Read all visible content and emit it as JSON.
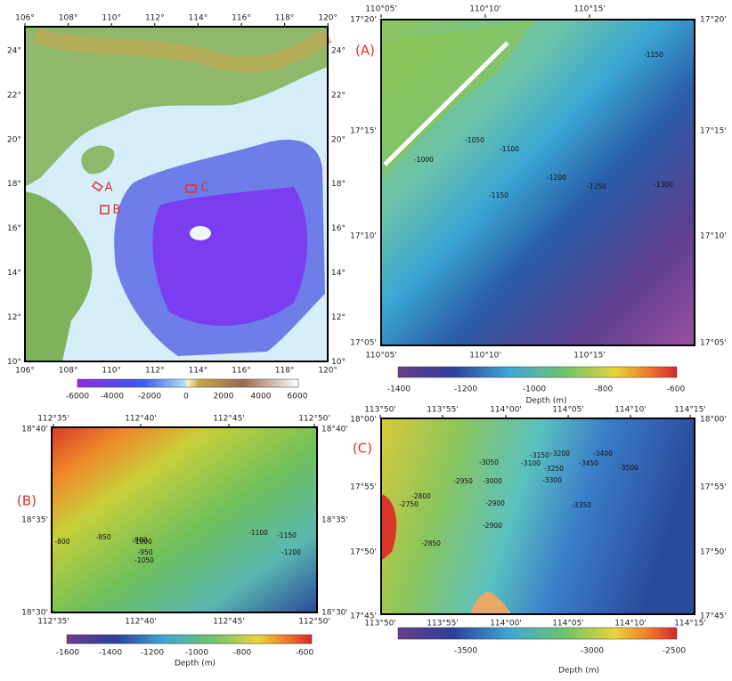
{
  "overview": {
    "lon_labels": [
      "106°",
      "108°",
      "110°",
      "112°",
      "114°",
      "116°",
      "118°",
      "120°"
    ],
    "lat_labels": [
      "24°",
      "22°",
      "20°",
      "18°",
      "16°",
      "14°",
      "12°",
      "10°"
    ],
    "site_labels": [
      "A",
      "B",
      "C"
    ],
    "colorbar_labels": [
      "-6000",
      "-4000",
      "-2000",
      "0",
      "2000",
      "4000",
      "6000"
    ]
  },
  "panel_a": {
    "label": "(A)",
    "lon_labels": [
      "110°05'",
      "110°10'",
      "110°15'"
    ],
    "lat_labels": [
      "17°20'",
      "17°15'",
      "17°10'",
      "17°05'"
    ],
    "contour_labels": [
      "-1000",
      "-1050",
      "-1100",
      "-1150",
      "-1150",
      "-1200",
      "-1250",
      "-1300"
    ],
    "colorbar_labels": [
      "-1400",
      "-1200",
      "-1000",
      "-800",
      "-600"
    ],
    "colorbar_title": "Depth (m)"
  },
  "panel_b": {
    "label": "(B)",
    "lon_labels": [
      "112°35'",
      "112°40'",
      "112°45'",
      "112°50'"
    ],
    "lat_labels": [
      "18°40'",
      "18°35'",
      "18°30'"
    ],
    "contour_labels": [
      "-800",
      "-850",
      "-900",
      "-950",
      "-1000",
      "-1050",
      "-1100",
      "-1150",
      "-1200"
    ],
    "colorbar_labels": [
      "-1600",
      "-1400",
      "-1200",
      "-1000",
      "-800",
      "-600"
    ],
    "colorbar_title": "Depth (m)"
  },
  "panel_c": {
    "label": "(C)",
    "lon_labels": [
      "113°50'",
      "113°55'",
      "114°00'",
      "114°05'",
      "114°10'",
      "114°15'"
    ],
    "lat_labels": [
      "18°00'",
      "17°55'",
      "17°50'",
      "17°45'"
    ],
    "contour_labels": [
      "-3050",
      "-3100",
      "-3150",
      "-3200",
      "-3250",
      "-3300",
      "-3350",
      "-3400",
      "-3450",
      "-3500",
      "-2950",
      "-3000",
      "-2900",
      "-2900",
      "-2800",
      "-2750",
      "-2850"
    ],
    "colorbar_labels": [
      "-3500",
      "-3000",
      "-2500"
    ],
    "colorbar_title": "Depth (m)"
  }
}
